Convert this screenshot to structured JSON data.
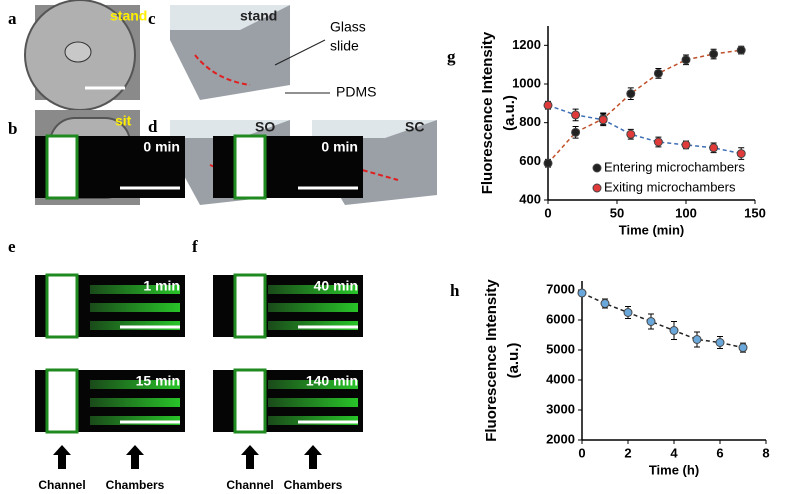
{
  "panels": {
    "letters": [
      "a",
      "b",
      "c",
      "d",
      "e",
      "f"
    ],
    "a_tag": "stand",
    "b_tag": "sit",
    "c_tag": "stand",
    "glass": [
      "Glass",
      "slide"
    ],
    "pdms": "PDMS",
    "d_tags": [
      "SO",
      "SC"
    ],
    "e_times": [
      "0 min",
      "1 min",
      "15 min"
    ],
    "f_times": [
      "0 min",
      "40 min",
      "140 min"
    ],
    "channel": "Channel",
    "chambers": "Chambers"
  },
  "chart_data": [
    {
      "type": "scatter",
      "letter": "g",
      "xlabel": "Time (min)",
      "ylabel": [
        "Fluorescence Intensity",
        "(a.u.)"
      ],
      "x": [
        0,
        20,
        40,
        60,
        80,
        100,
        120,
        140
      ],
      "series": [
        {
          "name": "Entering microchambers",
          "color": "#222222",
          "line_color": "#c0502a",
          "values": [
            590,
            750,
            820,
            950,
            1055,
            1125,
            1155,
            1175
          ],
          "errors": [
            20,
            30,
            30,
            30,
            25,
            25,
            25,
            20
          ]
        },
        {
          "name": "Exiting microchambers",
          "color": "#e03a3a",
          "line_color": "#3f6fb5",
          "values": [
            890,
            840,
            815,
            740,
            700,
            685,
            670,
            640
          ],
          "errors": [
            20,
            30,
            30,
            25,
            25,
            20,
            25,
            30
          ]
        }
      ],
      "xlim": [
        0,
        150
      ],
      "xticks": [
        0,
        50,
        100,
        150
      ],
      "ylim": [
        400,
        1300
      ],
      "yticks": [
        400,
        600,
        800,
        1000,
        1200
      ]
    },
    {
      "type": "scatter",
      "letter": "h",
      "xlabel": "Time (h)",
      "ylabel": [
        "Fluorescence Intensity",
        "(a.u.)"
      ],
      "x": [
        0,
        1,
        2,
        3,
        4,
        5,
        6,
        7
      ],
      "series": [
        {
          "color": "#6aa7db",
          "line_color": "#222222",
          "values": [
            6900,
            6550,
            6250,
            5950,
            5650,
            5350,
            5250,
            5080
          ],
          "errors": [
            100,
            150,
            200,
            250,
            300,
            250,
            200,
            150
          ]
        }
      ],
      "xlim": [
        0,
        8
      ],
      "xticks": [
        0,
        2,
        4,
        6,
        8
      ],
      "ylim": [
        2000,
        7300
      ],
      "yticks": [
        2000,
        3000,
        4000,
        5000,
        6000,
        7000
      ]
    }
  ]
}
